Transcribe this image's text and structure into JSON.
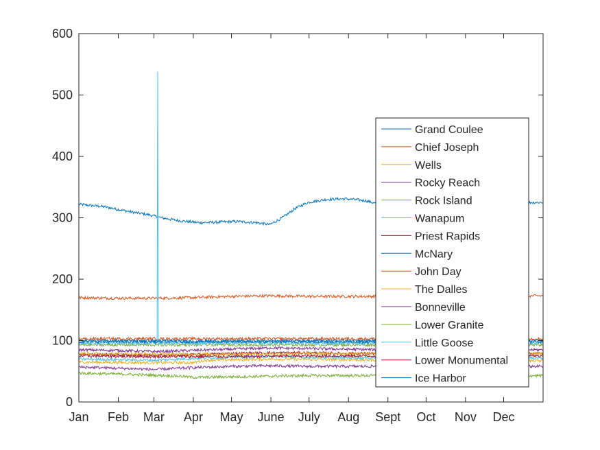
{
  "chart_data": {
    "type": "line",
    "title": "",
    "xlabel": "",
    "ylabel": "",
    "xlim": [
      0,
      365
    ],
    "ylim": [
      0,
      600
    ],
    "x_ticks": [
      {
        "label": "Jan",
        "day": 0
      },
      {
        "label": "Feb",
        "day": 31
      },
      {
        "label": "Mar",
        "day": 59
      },
      {
        "label": "Apr",
        "day": 90
      },
      {
        "label": "May",
        "day": 120
      },
      {
        "label": "June",
        "day": 151
      },
      {
        "label": "July",
        "day": 181
      },
      {
        "label": "Aug",
        "day": 212
      },
      {
        "label": "Sept",
        "day": 243
      },
      {
        "label": "Oct",
        "day": 273
      },
      {
        "label": "Nov",
        "day": 304
      },
      {
        "label": "Dec",
        "day": 334
      }
    ],
    "y_ticks": [
      0,
      100,
      200,
      300,
      400,
      500,
      600
    ],
    "grid": false,
    "legend_position": "right",
    "series": [
      {
        "name": "Grand Coulee",
        "color": "#0072BD",
        "x": [
          0,
          20,
          40,
          55,
          65,
          80,
          95,
          110,
          125,
          140,
          150,
          160,
          170,
          180,
          195,
          210,
          225,
          240,
          255,
          270,
          285,
          300,
          320,
          340,
          365
        ],
        "y": [
          322,
          318,
          310,
          305,
          300,
          295,
          292,
          293,
          294,
          292,
          289,
          300,
          315,
          325,
          330,
          331,
          328,
          320,
          316,
          315,
          317,
          320,
          322,
          325,
          325
        ]
      },
      {
        "name": "Chief Joseph",
        "color": "#D95319",
        "x": [
          0,
          30,
          60,
          90,
          120,
          150,
          180,
          210,
          240,
          270,
          300,
          330,
          365
        ],
        "y": [
          170,
          169,
          169,
          170,
          172,
          173,
          172,
          172,
          172,
          172,
          172,
          172,
          173
        ]
      },
      {
        "name": "Wells",
        "color": "#EDB120",
        "x": [
          0,
          50,
          90,
          100,
          150,
          200,
          250,
          300,
          365
        ],
        "y": [
          65,
          64,
          64,
          68,
          70,
          69,
          68,
          68,
          67
        ]
      },
      {
        "name": "Rocky Reach",
        "color": "#7E2F8E",
        "x": [
          0,
          30,
          60,
          90,
          120,
          150,
          180,
          210,
          240,
          270,
          300,
          365
        ],
        "y": [
          85,
          84,
          82,
          84,
          86,
          88,
          87,
          86,
          85,
          85,
          85,
          85
        ]
      },
      {
        "name": "Rock Island",
        "color": "#77AC30",
        "x": [
          0,
          40,
          80,
          90,
          120,
          150,
          180,
          210,
          240,
          270,
          300,
          365
        ],
        "y": [
          47,
          45,
          42,
          40,
          41,
          42,
          43,
          43,
          43,
          43,
          43,
          43
        ]
      },
      {
        "name": "Wanapum",
        "color": "#4DBEEE",
        "x": [
          0,
          30,
          60,
          90,
          120,
          150,
          180,
          210,
          240,
          270,
          300,
          365
        ],
        "y": [
          70,
          69,
          68,
          71,
          73,
          74,
          73,
          72,
          72,
          72,
          72,
          72
        ]
      },
      {
        "name": "Priest Rapids",
        "color": "#A2142F",
        "x": [
          0,
          30,
          60,
          90,
          120,
          150,
          180,
          210,
          240,
          270,
          300,
          365
        ],
        "y": [
          78,
          77,
          76,
          77,
          79,
          80,
          80,
          79,
          79,
          79,
          79,
          79
        ]
      },
      {
        "name": "McNary",
        "color": "#0072BD",
        "x": [
          0,
          60,
          120,
          180,
          240,
          300,
          365
        ],
        "y": [
          100,
          100,
          99,
          100,
          100,
          100,
          100
        ]
      },
      {
        "name": "John Day",
        "color": "#D95319",
        "x": [
          0,
          60,
          120,
          180,
          240,
          300,
          365
        ],
        "y": [
          103,
          103,
          103,
          103,
          103,
          103,
          103
        ]
      },
      {
        "name": "The Dalles",
        "color": "#EDB120",
        "x": [
          0,
          60,
          120,
          180,
          240,
          300,
          365
        ],
        "y": [
          79,
          78,
          78,
          79,
          79,
          79,
          79
        ]
      },
      {
        "name": "Bonneville",
        "color": "#7E2F8E",
        "x": [
          0,
          30,
          60,
          90,
          120,
          150,
          180,
          210,
          240,
          270,
          300,
          365
        ],
        "y": [
          57,
          55,
          53,
          56,
          58,
          59,
          58,
          58,
          58,
          58,
          58,
          58
        ]
      },
      {
        "name": "Lower Granite",
        "color": "#77AC30",
        "x": [
          0,
          60,
          120,
          180,
          240,
          300,
          365
        ],
        "y": [
          93,
          93,
          93,
          93,
          93,
          93,
          93
        ]
      },
      {
        "name": "Little Goose",
        "color": "#4DBEEE",
        "x": [
          0,
          61,
          62,
          63,
          64,
          120,
          180,
          240,
          300,
          365
        ],
        "y": [
          96,
          96,
          538,
          96,
          96,
          96,
          96,
          96,
          96,
          96
        ]
      },
      {
        "name": "Lower Monumental",
        "color": "#A2142F",
        "x": [
          0,
          60,
          120,
          180,
          240,
          300,
          365
        ],
        "y": [
          75,
          74,
          74,
          75,
          75,
          75,
          75
        ]
      },
      {
        "name": "Ice Harbor",
        "color": "#0072BD",
        "x": [
          0,
          60,
          120,
          180,
          240,
          300,
          365
        ],
        "y": [
          98,
          98,
          98,
          98,
          98,
          98,
          98
        ]
      }
    ]
  }
}
